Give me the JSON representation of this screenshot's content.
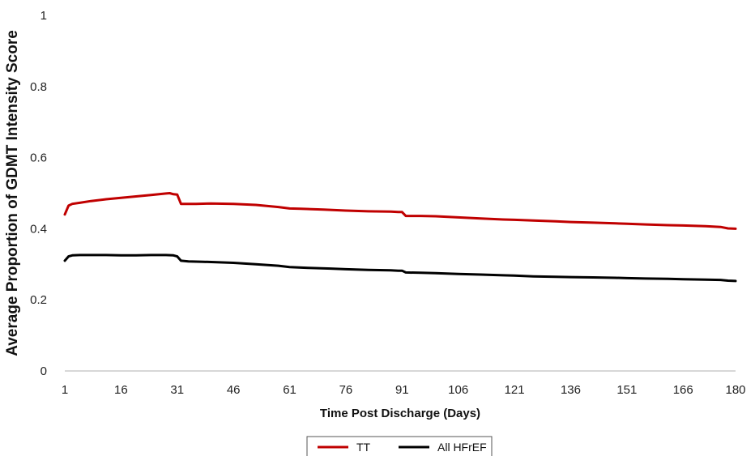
{
  "chart_data": {
    "type": "line",
    "xlabel": "Time Post Discharge (Days)",
    "ylabel": "Average Proportion of GDMT Intensity Score",
    "xlim": [
      1,
      180
    ],
    "ylim": [
      0,
      1
    ],
    "x_ticks": [
      1,
      16,
      31,
      46,
      61,
      76,
      91,
      106,
      121,
      136,
      151,
      166,
      180
    ],
    "y_ticks": [
      0,
      0.2,
      0.4,
      0.6,
      0.8,
      1
    ],
    "y_tick_labels": [
      "0",
      "0.2",
      "0.4",
      "0.6",
      "0.8",
      "1"
    ],
    "grid": false,
    "legend_position": "bottom",
    "series": [
      {
        "name": "TT",
        "color": "#c00000",
        "x": [
          1,
          2,
          3,
          5,
          8,
          12,
          16,
          20,
          24,
          28,
          29,
          30,
          31,
          32,
          36,
          40,
          46,
          52,
          58,
          61,
          64,
          70,
          76,
          82,
          88,
          90,
          91,
          92,
          96,
          100,
          106,
          112,
          118,
          121,
          126,
          132,
          136,
          142,
          148,
          151,
          156,
          162,
          166,
          172,
          176,
          178,
          180
        ],
        "y": [
          0.44,
          0.465,
          0.47,
          0.473,
          0.478,
          0.483,
          0.487,
          0.491,
          0.495,
          0.499,
          0.5,
          0.497,
          0.496,
          0.47,
          0.47,
          0.471,
          0.47,
          0.467,
          0.461,
          0.457,
          0.456,
          0.454,
          0.451,
          0.449,
          0.448,
          0.447,
          0.447,
          0.436,
          0.436,
          0.435,
          0.432,
          0.429,
          0.426,
          0.425,
          0.423,
          0.421,
          0.419,
          0.417,
          0.415,
          0.414,
          0.412,
          0.41,
          0.409,
          0.407,
          0.405,
          0.401,
          0.4
        ]
      },
      {
        "name": "All HFrEF",
        "color": "#000000",
        "x": [
          1,
          2,
          3,
          5,
          8,
          12,
          16,
          20,
          24,
          28,
          30,
          31,
          32,
          34,
          38,
          46,
          52,
          58,
          61,
          66,
          72,
          76,
          82,
          88,
          90,
          91,
          92,
          96,
          100,
          106,
          112,
          118,
          121,
          126,
          132,
          136,
          142,
          148,
          151,
          156,
          162,
          166,
          172,
          176,
          178,
          180
        ],
        "y": [
          0.31,
          0.322,
          0.325,
          0.326,
          0.326,
          0.326,
          0.325,
          0.325,
          0.326,
          0.326,
          0.325,
          0.322,
          0.31,
          0.308,
          0.307,
          0.304,
          0.3,
          0.296,
          0.292,
          0.29,
          0.288,
          0.286,
          0.284,
          0.283,
          0.282,
          0.282,
          0.277,
          0.276,
          0.275,
          0.273,
          0.271,
          0.269,
          0.268,
          0.266,
          0.265,
          0.264,
          0.263,
          0.262,
          0.261,
          0.26,
          0.259,
          0.258,
          0.257,
          0.256,
          0.254,
          0.253
        ]
      }
    ]
  }
}
